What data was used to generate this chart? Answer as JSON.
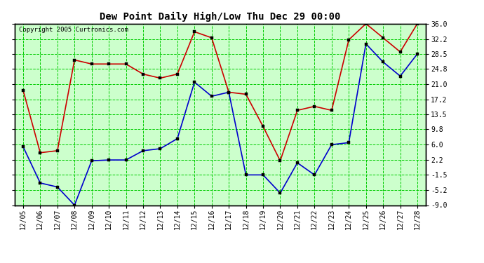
{
  "title": "Dew Point Daily High/Low Thu Dec 29 00:00",
  "copyright": "Copyright 2005 Curtronics.com",
  "x_labels": [
    "12/05",
    "12/06",
    "12/07",
    "12/08",
    "12/09",
    "12/10",
    "12/11",
    "12/12",
    "12/13",
    "12/14",
    "12/15",
    "12/16",
    "12/17",
    "12/18",
    "12/19",
    "12/20",
    "12/21",
    "12/22",
    "12/23",
    "12/24",
    "12/25",
    "12/26",
    "12/27",
    "12/28"
  ],
  "high_values": [
    19.5,
    4.0,
    4.5,
    27.0,
    26.0,
    26.0,
    26.0,
    23.5,
    22.5,
    23.5,
    34.0,
    32.5,
    19.0,
    18.5,
    10.5,
    2.0,
    14.5,
    15.5,
    14.5,
    32.0,
    36.0,
    32.5,
    29.0,
    36.0
  ],
  "low_values": [
    5.5,
    -3.5,
    -4.5,
    -9.0,
    2.0,
    2.2,
    2.2,
    4.5,
    5.0,
    7.5,
    21.5,
    18.0,
    19.0,
    -1.5,
    -1.5,
    -6.0,
    1.5,
    -1.5,
    6.0,
    6.5,
    31.0,
    26.5,
    23.0,
    28.5
  ],
  "high_color": "#cc0000",
  "low_color": "#0000cc",
  "outer_bg": "#ffffff",
  "plot_bg": "#ccffcc",
  "grid_color": "#00cc00",
  "yticks": [
    36.0,
    32.2,
    28.5,
    24.8,
    21.0,
    17.2,
    13.5,
    9.8,
    6.0,
    2.2,
    -1.5,
    -5.2,
    -9.0
  ],
  "ymin": -9.0,
  "ymax": 36.0,
  "title_fontsize": 10,
  "copyright_fontsize": 6.5,
  "tick_fontsize": 7
}
